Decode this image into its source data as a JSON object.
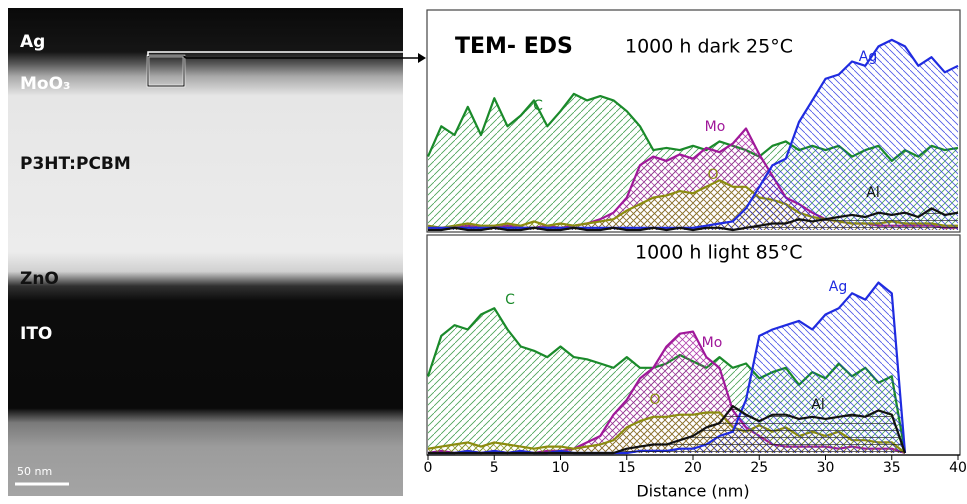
{
  "image": {
    "labels": [
      "Ag",
      "MoO₃",
      "P3HT:PCBM",
      "ZnO",
      "ITO"
    ],
    "scale_bar": "50 nm"
  },
  "chart_data": [
    {
      "type": "area",
      "title": "TEM- EDS",
      "subtitle": "1000 h dark 25°C",
      "x": [
        0,
        1,
        2,
        3,
        4,
        5,
        6,
        7,
        8,
        9,
        10,
        11,
        12,
        13,
        14,
        15,
        16,
        17,
        18,
        19,
        20,
        21,
        22,
        23,
        24,
        25,
        26,
        27,
        28,
        29,
        30,
        31,
        32,
        33,
        34,
        35,
        36,
        37,
        38,
        39,
        40
      ],
      "xlim": [
        0,
        40
      ],
      "ylim": [
        0,
        100
      ],
      "series": [
        {
          "name": "C",
          "color": "#1a8a2a",
          "values": [
            34,
            48,
            44,
            57,
            44,
            61,
            48,
            53,
            60,
            48,
            55,
            63,
            60,
            62,
            60,
            55,
            48,
            37,
            38,
            37,
            39,
            37,
            41,
            39,
            37,
            34,
            39,
            41,
            37,
            39,
            37,
            39,
            34,
            37,
            39,
            32,
            37,
            34,
            39,
            37,
            38
          ]
        },
        {
          "name": "Mo",
          "color": "#a0189a",
          "values": [
            1,
            1,
            1,
            2,
            1,
            1,
            2,
            1,
            1,
            2,
            1,
            2,
            3,
            5,
            8,
            15,
            30,
            34,
            32,
            35,
            33,
            38,
            36,
            40,
            47,
            35,
            25,
            15,
            12,
            8,
            5,
            4,
            3,
            3,
            2,
            2,
            2,
            2,
            2,
            1,
            1
          ]
        },
        {
          "name": "O",
          "color": "#8c8c10",
          "values": [
            2,
            1,
            2,
            3,
            2,
            2,
            3,
            2,
            4,
            2,
            3,
            2,
            3,
            4,
            5,
            9,
            12,
            15,
            16,
            18,
            17,
            20,
            23,
            20,
            20,
            15,
            14,
            12,
            8,
            6,
            5,
            4,
            3,
            3,
            3,
            4,
            3,
            3,
            3,
            2,
            2
          ]
        },
        {
          "name": "Ag",
          "color": "#1f2be0",
          "values": [
            1,
            1,
            1,
            1,
            1,
            1,
            1,
            1,
            1,
            1,
            1,
            1,
            1,
            1,
            1,
            1,
            1,
            1,
            1,
            1,
            1,
            2,
            3,
            4,
            10,
            20,
            30,
            33,
            50,
            60,
            70,
            72,
            78,
            76,
            85,
            88,
            85,
            76,
            80,
            73,
            76
          ]
        },
        {
          "name": "Al",
          "color": "#111111",
          "values": [
            0,
            0,
            1,
            0,
            0,
            1,
            0,
            0,
            1,
            0,
            0,
            1,
            0,
            0,
            1,
            0,
            0,
            1,
            0,
            1,
            0,
            1,
            1,
            0,
            1,
            2,
            3,
            3,
            5,
            4,
            5,
            6,
            7,
            6,
            8,
            7,
            8,
            6,
            10,
            7,
            8
          ]
        }
      ]
    },
    {
      "type": "area",
      "title": "1000 h light 85°C",
      "xlabel": "Distance (nm)",
      "x": [
        0,
        1,
        2,
        3,
        4,
        5,
        6,
        7,
        8,
        9,
        10,
        11,
        12,
        13,
        14,
        15,
        16,
        17,
        18,
        19,
        20,
        21,
        22,
        23,
        24,
        25,
        26,
        27,
        28,
        29,
        30,
        31,
        32,
        33,
        34,
        35,
        36
      ],
      "xlim": [
        0,
        40
      ],
      "ylim": [
        0,
        100
      ],
      "xticks": [
        0,
        5,
        10,
        15,
        20,
        25,
        30,
        35,
        40
      ],
      "series": [
        {
          "name": "C",
          "color": "#1a8a2a",
          "values": [
            36,
            55,
            60,
            58,
            65,
            68,
            58,
            50,
            48,
            45,
            50,
            45,
            44,
            42,
            40,
            45,
            40,
            40,
            42,
            46,
            43,
            40,
            45,
            40,
            42,
            35,
            38,
            40,
            32,
            38,
            35,
            42,
            36,
            40,
            33,
            36,
            0
          ]
        },
        {
          "name": "Mo",
          "color": "#a0189a",
          "values": [
            0,
            1,
            0,
            1,
            0,
            1,
            0,
            1,
            0,
            1,
            1,
            2,
            5,
            8,
            18,
            25,
            35,
            40,
            50,
            56,
            57,
            45,
            40,
            20,
            12,
            8,
            4,
            3,
            3,
            3,
            3,
            2,
            3,
            2,
            2,
            2,
            0
          ]
        },
        {
          "name": "O",
          "color": "#8c8c10",
          "values": [
            2,
            3,
            4,
            5,
            3,
            5,
            4,
            3,
            2,
            3,
            3,
            2,
            3,
            4,
            6,
            12,
            15,
            17,
            17,
            18,
            18,
            19,
            19,
            12,
            10,
            13,
            10,
            12,
            8,
            10,
            8,
            10,
            6,
            6,
            5,
            5,
            0
          ]
        },
        {
          "name": "Ag",
          "color": "#1f2be0",
          "values": [
            0,
            0,
            0,
            1,
            0,
            1,
            0,
            1,
            0,
            0,
            1,
            0,
            0,
            0,
            0,
            0,
            1,
            1,
            1,
            2,
            2,
            4,
            8,
            10,
            25,
            55,
            58,
            60,
            62,
            58,
            65,
            68,
            75,
            72,
            80,
            75,
            0
          ]
        },
        {
          "name": "Al",
          "color": "#111111",
          "values": [
            0,
            0,
            0,
            0,
            0,
            0,
            0,
            0,
            0,
            0,
            0,
            0,
            0,
            0,
            0,
            2,
            3,
            4,
            4,
            6,
            8,
            12,
            14,
            22,
            18,
            15,
            18,
            18,
            16,
            17,
            16,
            17,
            18,
            17,
            20,
            18,
            0
          ]
        }
      ]
    }
  ]
}
